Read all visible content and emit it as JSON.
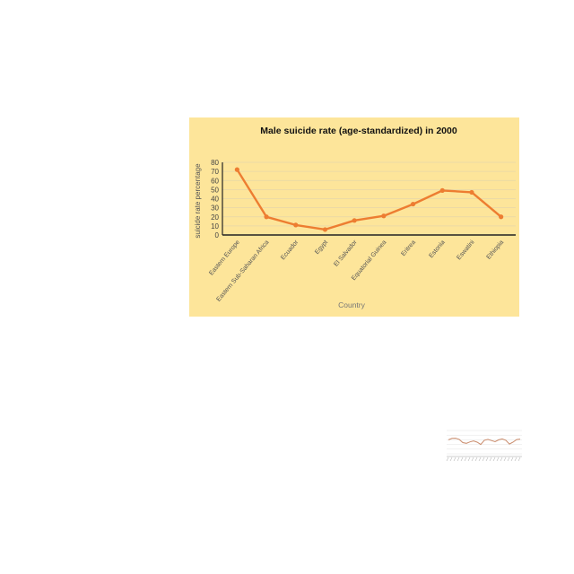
{
  "chart_data": [
    {
      "type": "line",
      "title": "Male suicide rate (age-standardized) in 2000",
      "xlabel": "Country",
      "ylabel": "suicide rate percentage",
      "categories": [
        "Eastern Europe",
        "Eastern Sub-Saharan Africa",
        "Ecuador",
        "Egypt",
        "El Salvador",
        "Equatorial Guinea",
        "Eritrea",
        "Estonia",
        "Eswatini",
        "Ethiopia"
      ],
      "values": [
        72,
        20,
        11,
        6,
        16,
        21,
        34,
        49,
        47,
        20
      ],
      "ylim": [
        0,
        80
      ],
      "yticks": [
        "0",
        "10",
        "20",
        "30",
        "40",
        "50",
        "60",
        "70",
        "80"
      ],
      "grid": true,
      "legend": "none",
      "colors": {
        "background": "#fde59a",
        "line": "#ed7d31",
        "grid": "#e6d6a8",
        "axis": "#222222"
      }
    },
    {
      "type": "line",
      "title": "",
      "xlabel": "",
      "ylabel": "",
      "categories": [
        "1",
        "2",
        "3",
        "4",
        "5",
        "6",
        "7",
        "8",
        "9",
        "10",
        "11",
        "12",
        "13",
        "14",
        "15",
        "16",
        "17",
        "18",
        "19",
        "20",
        "21"
      ],
      "values": [
        60,
        66,
        67,
        62,
        48,
        45,
        51,
        55,
        50,
        40,
        58,
        62,
        57,
        52,
        60,
        64,
        58,
        42,
        50,
        61,
        63
      ],
      "ylim": [
        0,
        100
      ],
      "grid": true,
      "legend": "none",
      "colors": {
        "line": "#c98a6a",
        "grid": "#dddddd"
      }
    }
  ]
}
